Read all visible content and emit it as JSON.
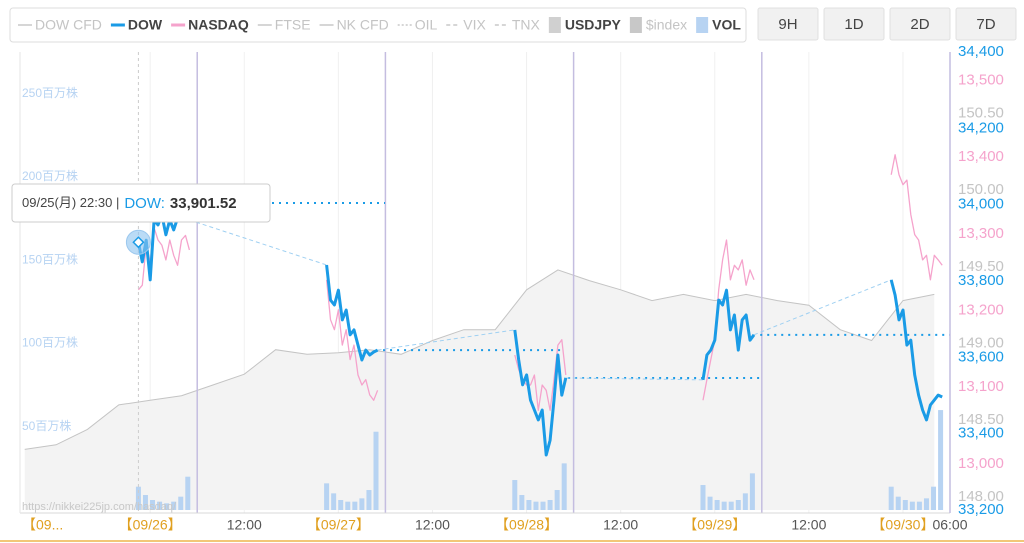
{
  "chart_data": {
    "type": "line",
    "watermark": "https://nikkei225jp.com/nasdaq/",
    "buttons": [
      "9H",
      "1D",
      "2D",
      "7D"
    ],
    "tooltip": {
      "time": "09/25(月) 22:30 |",
      "series": "DOW:",
      "value_label": "33,901.52"
    },
    "xlim": [
      -16.6,
      102
    ],
    "xticks": [
      {
        "value": -16.6,
        "label": "【09..."
      },
      {
        "value": 0,
        "label": "【09/26】"
      },
      {
        "value": 12,
        "label": "12:00"
      },
      {
        "value": 24,
        "label": "【09/27】"
      },
      {
        "value": 36,
        "label": "12:00"
      },
      {
        "value": 48,
        "label": "【09/28】"
      },
      {
        "value": 60,
        "label": "12:00"
      },
      {
        "value": 72,
        "label": "【09/29】"
      },
      {
        "value": 84,
        "label": "12:00"
      },
      {
        "value": 96,
        "label": "【09/30】"
      },
      {
        "value": 102,
        "label": "06:00"
      }
    ],
    "grid": "x",
    "xlines": [
      6,
      30,
      54,
      78
    ],
    "ylim": [
      33200,
      34400
    ],
    "yticks": [
      {
        "value": 34400,
        "label": "34,400"
      },
      {
        "value": 34200,
        "label": "34,200"
      },
      {
        "value": 34000,
        "label": "34,000"
      },
      {
        "value": 33800,
        "label": "33,800"
      },
      {
        "value": 33600,
        "label": "33,600"
      },
      {
        "value": 33400,
        "label": "33,400"
      },
      {
        "value": 33200,
        "label": "33,200"
      }
    ],
    "y2lim": [
      12940,
      13537
    ],
    "y2ticks": [
      {
        "value": 13500,
        "label": "13,500"
      },
      {
        "value": 13400,
        "label": "13,400"
      },
      {
        "value": 13300,
        "label": "13,300"
      },
      {
        "value": 13200,
        "label": "13,200"
      },
      {
        "value": 13100,
        "label": "13,100"
      },
      {
        "value": 13000,
        "label": "13,000"
      }
    ],
    "y3lim": [
      147.915,
      150.9
    ],
    "y3ticks": [
      {
        "value": 150.5,
        "label": "150.50"
      },
      {
        "value": 150,
        "label": "150.00"
      },
      {
        "value": 149.5,
        "label": "149.50"
      },
      {
        "value": 149,
        "label": "149.00"
      },
      {
        "value": 148.5,
        "label": "148.50"
      },
      {
        "value": 148,
        "label": "148.00"
      }
    ],
    "y4lim": [
      0,
      275
    ],
    "y4ticks": [
      {
        "value": 250,
        "label": "250百万株"
      },
      {
        "value": 200,
        "label": "200百万株"
      },
      {
        "value": 150,
        "label": "150百万株"
      },
      {
        "value": 100,
        "label": "100百万株"
      },
      {
        "value": 50,
        "label": "50百万株"
      }
    ],
    "close_lines": [
      {
        "x": [
          29.7,
          52.9
        ],
        "value": 33619
      },
      {
        "x": [
          53.3,
          77.8
        ],
        "value": 33546
      },
      {
        "x": [
          77.8,
          102
        ],
        "value": 33659
      }
    ],
    "x": [
      -1.5,
      -1,
      -0.5,
      0,
      0.5,
      1,
      1.5,
      2,
      2.5,
      3,
      3.5,
      4,
      4.5,
      5,
      null,
      22.5,
      23,
      23.5,
      24,
      24.5,
      25,
      25.5,
      26,
      26.5,
      27,
      27.5,
      28,
      28.5,
      29,
      null,
      46.5,
      47,
      47.5,
      48,
      48.5,
      49,
      49.5,
      50,
      50.5,
      51,
      51.5,
      52,
      52.5,
      53,
      null,
      70.5,
      71,
      71.5,
      72,
      72.5,
      73,
      73.5,
      74,
      74.5,
      75,
      75.5,
      76,
      76.5,
      77,
      null,
      94.5,
      95,
      95.5,
      96,
      96.5,
      97,
      97.5,
      98,
      98.5,
      99,
      99.5,
      100,
      100.5,
      101
    ],
    "series": [
      {
        "name": "DOW CFD",
        "color": "#c8c8c8",
        "style": "line",
        "visible": false
      },
      {
        "name": "DOW",
        "color": "#1a9be6",
        "style": "line",
        "visible": true,
        "axis": "y",
        "values": [
          33901.52,
          33850,
          33907,
          33803,
          33960,
          33947,
          33973,
          33921,
          33960,
          33934,
          33965,
          33981,
          33973,
          33960,
          null,
          33842,
          33750,
          33737,
          33776,
          33698,
          33724,
          33659,
          33672,
          33632,
          33593,
          33619,
          33606,
          33614,
          33619,
          null,
          33672,
          33593,
          33528,
          33554,
          33488,
          33462,
          33436,
          33462,
          33344,
          33383,
          33488,
          33606,
          33501,
          33546,
          null,
          33541,
          33606,
          33619,
          33645,
          33750,
          33737,
          33776,
          33672,
          33711,
          33619,
          33698,
          33711,
          33645,
          33659,
          null,
          33803,
          33763,
          33698,
          33724,
          33632,
          33645,
          33554,
          33501,
          33462,
          33436,
          33475,
          33488,
          33501,
          33496
        ]
      },
      {
        "name": "NASDAQ",
        "color": "#f5a3cc",
        "style": "line",
        "visible": true,
        "axis": "y2",
        "values": [
          13227,
          13233,
          13285,
          13263,
          13308,
          13292,
          13285,
          13266,
          13292,
          13272,
          13259,
          13292,
          13298,
          13279,
          null,
          13240,
          13188,
          13175,
          13201,
          13155,
          13175,
          13136,
          13155,
          13116,
          13103,
          13110,
          13090,
          13083,
          13096,
          null,
          13142,
          13123,
          13110,
          13103,
          13103,
          13116,
          13070,
          13103,
          13096,
          13070,
          13110,
          13155,
          13162,
          13116,
          null,
          13083,
          13110,
          13136,
          13162,
          13227,
          13266,
          13292,
          13240,
          13259,
          13253,
          13266,
          13233,
          13253,
          13240,
          null,
          13377,
          13403,
          13377,
          13364,
          13370,
          13325,
          13299,
          13292,
          13266,
          13272,
          13240,
          13272,
          13266,
          13259
        ]
      },
      {
        "name": "FTSE",
        "color": "#c8c8c8",
        "style": "line",
        "visible": false
      },
      {
        "name": "NK CFD",
        "color": "#c8c8c8",
        "style": "line",
        "visible": false
      },
      {
        "name": "OIL",
        "color": "#c8c8c8",
        "style": "dotted",
        "visible": false
      },
      {
        "name": "VIX",
        "color": "#c8c8c8",
        "style": "dashed",
        "visible": false
      },
      {
        "name": "TNX",
        "color": "#c8c8c8",
        "style": "dashed",
        "visible": false
      },
      {
        "name": "USDJPY",
        "color": "#c4c4c4",
        "style": "area",
        "visible": true,
        "axis": "y3",
        "x": [
          -16,
          -12,
          -8,
          -4,
          0,
          4,
          8,
          12,
          16,
          20,
          24,
          28,
          32,
          36,
          40,
          44,
          48,
          52,
          56,
          60,
          64,
          68,
          72,
          76,
          80,
          84,
          88,
          92,
          96,
          100
        ],
        "values": [
          148.31,
          148.34,
          148.44,
          148.6,
          148.63,
          148.66,
          148.73,
          148.8,
          148.96,
          148.93,
          148.94,
          148.96,
          148.93,
          149.02,
          149.09,
          149.09,
          149.35,
          149.48,
          149.41,
          149.35,
          149.28,
          149.32,
          149.28,
          149.32,
          149.28,
          149.25,
          149.09,
          149.02,
          149.28,
          149.32
        ]
      },
      {
        "name": "$index",
        "color": "#c8c8c8",
        "style": "box",
        "visible": false
      },
      {
        "name": "VOL",
        "color": "#b7d3f2",
        "style": "bar",
        "visible": true,
        "axis": "y4",
        "x": [
          -1.5,
          -0.6,
          0.3,
          1.2,
          2.1,
          3.0,
          3.9,
          4.8,
          22.5,
          23.4,
          24.3,
          25.2,
          26.1,
          27.0,
          27.9,
          28.8,
          46.5,
          47.4,
          48.3,
          49.2,
          50.1,
          51.0,
          51.9,
          52.8,
          70.5,
          71.4,
          72.3,
          73.2,
          74.1,
          75.0,
          75.9,
          76.8,
          94.5,
          95.4,
          96.3,
          97.2,
          98.1,
          99.0,
          99.9,
          100.8
        ],
        "values": [
          14,
          9,
          6,
          5,
          4,
          5,
          8,
          20,
          16,
          10,
          6,
          5,
          5,
          7,
          12,
          47,
          18,
          9,
          6,
          5,
          5,
          6,
          12,
          28,
          15,
          8,
          6,
          5,
          5,
          6,
          10,
          22,
          14,
          8,
          6,
          5,
          5,
          7,
          14,
          60
        ]
      }
    ]
  }
}
